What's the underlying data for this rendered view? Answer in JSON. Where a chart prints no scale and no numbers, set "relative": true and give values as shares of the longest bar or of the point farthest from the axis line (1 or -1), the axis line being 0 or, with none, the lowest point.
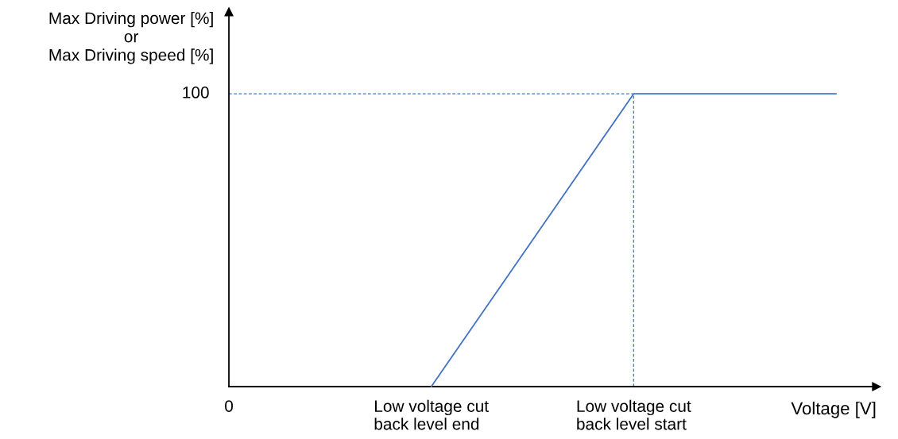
{
  "chart_data": {
    "type": "line",
    "relative": true,
    "ylabel": "Max Driving power [%]\nor\nMax Driving speed [%]",
    "xlabel": "Voltage [V]",
    "categories": [
      "0",
      "Low voltage cut\nback level end",
      "Low voltage cut\nback level start",
      null
    ],
    "series": [
      {
        "color": "#4472c4",
        "values": [
          null,
          0,
          1,
          1
        ]
      }
    ],
    "ref_lines": [
      {
        "axis": "y",
        "value": 1,
        "label": "100",
        "color": "#4472c4",
        "line_style": "dashed"
      },
      {
        "axis": "x",
        "value": "Low voltage cut\nback level start",
        "color": "#4472c4",
        "line_style": "dashed"
      }
    ],
    "grid": false,
    "legend": false,
    "marker": "none",
    "line_style": "solid"
  }
}
